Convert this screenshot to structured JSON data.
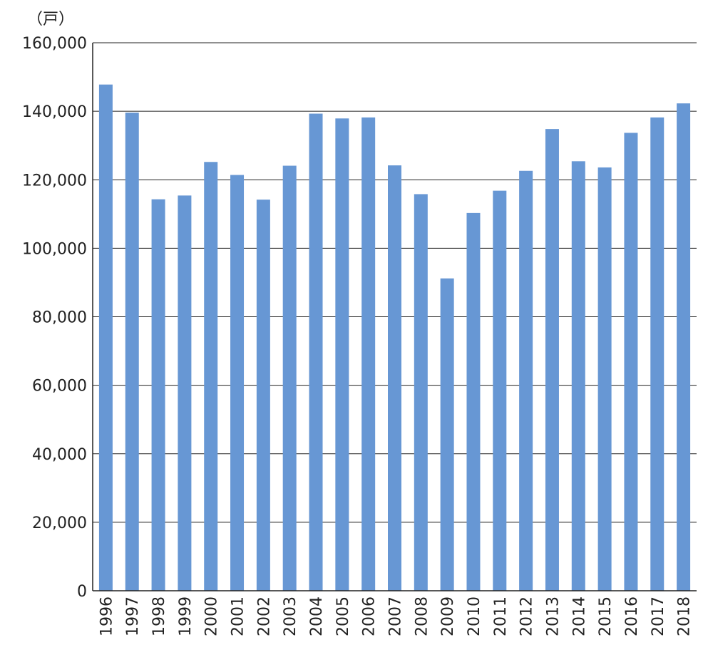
{
  "chart_data": {
    "type": "bar",
    "unit_label": "（戸）",
    "categories": [
      "1996",
      "1997",
      "1998",
      "1999",
      "2000",
      "2001",
      "2002",
      "2003",
      "2004",
      "2005",
      "2006",
      "2007",
      "2008",
      "2009",
      "2010",
      "2011",
      "2012",
      "2013",
      "2014",
      "2015",
      "2016",
      "2017",
      "2018"
    ],
    "series": [
      {
        "values": [
          147800,
          139600,
          114300,
          115400,
          125200,
          121400,
          114200,
          124100,
          139300,
          137900,
          138200,
          124200,
          115800,
          91200,
          110300,
          116800,
          122600,
          134800,
          125400,
          123600,
          133700,
          138200,
          142300
        ]
      }
    ],
    "ylim": [
      0,
      160000
    ],
    "yticks": [
      "0",
      "20,000",
      "40,000",
      "60,000",
      "80,000",
      "100,000",
      "120,000",
      "140,000",
      "160,000"
    ],
    "ytick_values": [
      0,
      20000,
      40000,
      60000,
      80000,
      100000,
      120000,
      140000,
      160000
    ],
    "grid": true,
    "bar_color": "#6797d4",
    "grid_color": "#222222"
  }
}
